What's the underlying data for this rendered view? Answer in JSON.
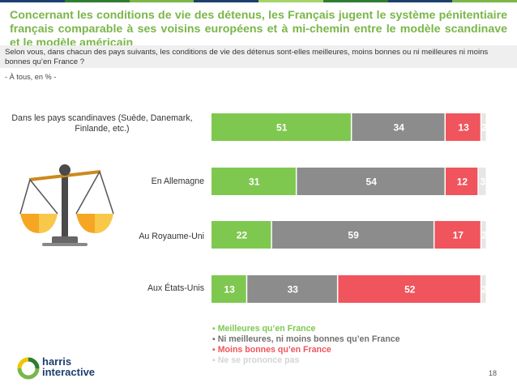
{
  "title": "Concernant les conditions de vie des détenus, les Français jugent le système pénitentiaire français comparable à ses voisins européens et à mi-chemin entre le modèle scandinave et le modèle américain",
  "question": "Selon vous, dans chacun des pays suivants, les conditions de vie des détenus sont-elles meilleures, moins bonnes ou ni meilleures ni moins bonnes qu’en France ?",
  "base": "- À tous, en % -",
  "page_number": "18",
  "logo": {
    "line1": "harris",
    "line2": "interactive",
    "icon": "harris-ring-logo-icon"
  },
  "illustration": {
    "icon": "balance-scale-icon"
  },
  "colors": {
    "better": "#7ec850",
    "neither": "#8c8c8c",
    "worse": "#f0545c",
    "nsp": "#e6e6e6",
    "title": "#7ab648"
  },
  "chart_data": {
    "type": "bar",
    "orientation": "horizontal",
    "stacked": true,
    "categories": [
      "Dans les pays scandinaves (Suède, Danemark, Finlande, etc.)",
      "En Allemagne",
      "Au Royaume-Uni",
      "Aux États-Unis"
    ],
    "series": [
      {
        "name": "Meilleures qu’en France",
        "values": [
          51,
          31,
          22,
          13
        ],
        "color": "#7ec850"
      },
      {
        "name": "Ni meilleures, ni moins bonnes qu’en France",
        "values": [
          34,
          54,
          59,
          33
        ],
        "color": "#8c8c8c"
      },
      {
        "name": "Moins bonnes qu’en France",
        "values": [
          13,
          12,
          17,
          52
        ],
        "color": "#f0545c"
      },
      {
        "name": "Ne se prononce pas",
        "values": [
          2,
          3,
          2,
          2
        ],
        "color": "#e6e6e6"
      }
    ],
    "xlim": [
      0,
      100
    ],
    "legend_position": "bottom"
  }
}
